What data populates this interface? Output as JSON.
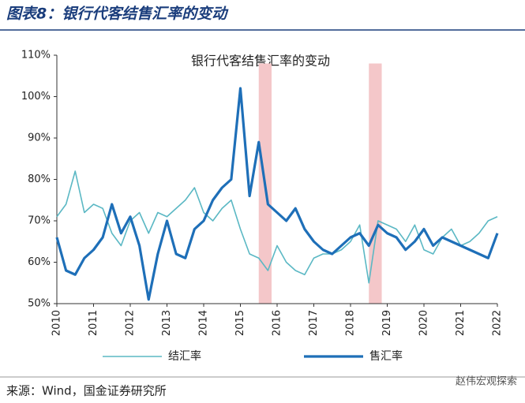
{
  "figure_label": "图表8：银行代客结售汇率的变动",
  "source": "来源：Wind，国金证券研究所",
  "watermark": "赵伟宏观探索",
  "chart_data": {
    "type": "line",
    "title": "银行代客结售汇率的变动",
    "x": [
      2010,
      2010.25,
      2010.5,
      2010.75,
      2011,
      2011.25,
      2011.5,
      2011.75,
      2012,
      2012.25,
      2012.5,
      2012.75,
      2013,
      2013.25,
      2013.5,
      2013.75,
      2014,
      2014.25,
      2014.5,
      2014.75,
      2015,
      2015.25,
      2015.5,
      2015.75,
      2016,
      2016.25,
      2016.5,
      2016.75,
      2017,
      2017.25,
      2017.5,
      2017.75,
      2018,
      2018.25,
      2018.5,
      2018.75,
      2019,
      2019.25,
      2019.5,
      2019.75,
      2020,
      2020.25,
      2020.5,
      2020.75,
      2021,
      2021.25,
      2021.5,
      2021.75,
      2022
    ],
    "series": [
      {
        "name": "结汇率",
        "color": "#5bb8c4",
        "width": 1.6,
        "values": [
          71,
          74,
          82,
          72,
          74,
          73,
          67,
          64,
          70,
          72,
          67,
          72,
          71,
          73,
          75,
          78,
          72,
          70,
          73,
          75,
          68,
          62,
          61,
          58,
          64,
          60,
          58,
          57,
          61,
          62,
          62,
          63,
          65,
          69,
          55,
          70,
          69,
          68,
          65,
          69,
          63,
          62,
          66,
          68,
          64,
          65,
          67,
          70,
          71
        ]
      },
      {
        "name": "售汇率",
        "color": "#1e6fb8",
        "width": 3.2,
        "values": [
          66,
          58,
          57,
          61,
          63,
          66,
          74,
          67,
          71,
          64,
          51,
          62,
          70,
          62,
          61,
          68,
          70,
          75,
          78,
          80,
          102,
          76,
          89,
          74,
          72,
          70,
          73,
          68,
          65,
          63,
          62,
          64,
          66,
          67,
          64,
          69,
          67,
          66,
          63,
          65,
          68,
          64,
          66,
          65,
          64,
          63,
          62,
          61,
          67
        ]
      }
    ],
    "xlim": [
      2010,
      2022
    ],
    "xticks": [
      2010,
      2011,
      2012,
      2013,
      2014,
      2015,
      2016,
      2017,
      2018,
      2019,
      2020,
      2021,
      2022
    ],
    "ylim": [
      50,
      110
    ],
    "yticks": [
      {
        "value": 50,
        "label": "50%"
      },
      {
        "value": 60,
        "label": "60%"
      },
      {
        "value": 70,
        "label": "70%"
      },
      {
        "value": 80,
        "label": "80%"
      },
      {
        "value": 90,
        "label": "90%"
      },
      {
        "value": 100,
        "label": "100%"
      },
      {
        "value": 110,
        "label": "110%"
      }
    ],
    "highlights": [
      [
        2015.5,
        2015.85
      ],
      [
        2018.5,
        2018.85
      ]
    ],
    "highlight_color": "#f4c7c9"
  }
}
